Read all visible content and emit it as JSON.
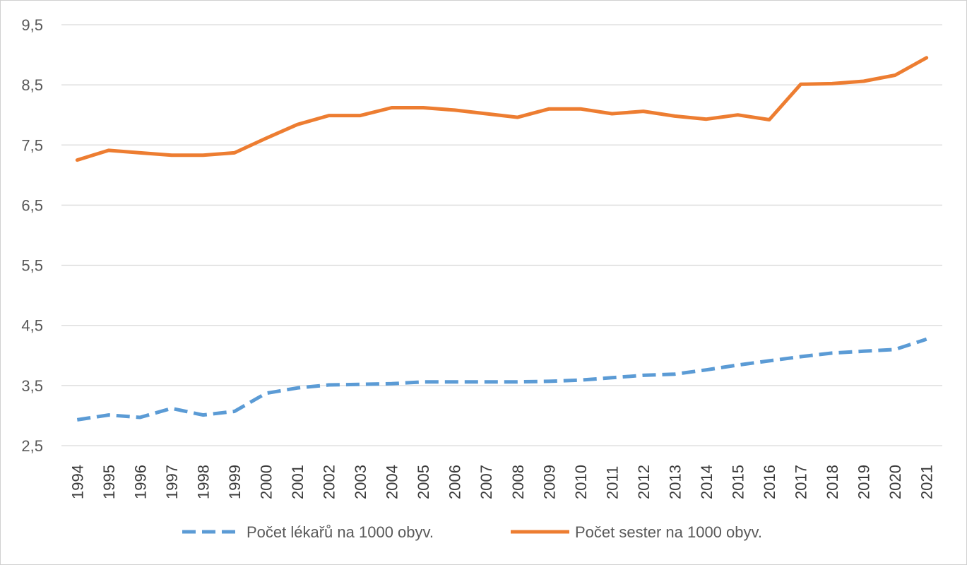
{
  "chart_data": {
    "type": "line",
    "title": "",
    "xlabel": "",
    "ylabel": "",
    "x": [
      "1994",
      "1995",
      "1996",
      "1997",
      "1998",
      "1999",
      "2000",
      "2001",
      "2002",
      "2003",
      "2004",
      "2005",
      "2006",
      "2007",
      "2008",
      "2009",
      "2010",
      "2011",
      "2012",
      "2013",
      "2014",
      "2015",
      "2016",
      "2017",
      "2018",
      "2019",
      "2020",
      "2021"
    ],
    "ylim": [
      2.5,
      9.5
    ],
    "yticks": [
      "2,5",
      "3,5",
      "4,5",
      "5,5",
      "6,5",
      "7,5",
      "8,5",
      "9,5"
    ],
    "grid": true,
    "legend_position": "bottom",
    "series": [
      {
        "name": "Počet lékařů na 1000 obyv.",
        "color": "#5b9bd5",
        "style": "dashed",
        "values": [
          2.93,
          3.01,
          2.97,
          3.12,
          3.01,
          3.07,
          3.37,
          3.46,
          3.51,
          3.52,
          3.53,
          3.56,
          3.56,
          3.56,
          3.56,
          3.57,
          3.59,
          3.63,
          3.67,
          3.69,
          3.76,
          3.84,
          3.91,
          3.98,
          4.04,
          4.07,
          4.1,
          4.27
        ]
      },
      {
        "name": "Počet sester na 1000 obyv.",
        "color": "#ed7d31",
        "style": "solid",
        "values": [
          7.25,
          7.41,
          7.37,
          7.33,
          7.33,
          7.37,
          7.61,
          7.84,
          7.99,
          7.99,
          8.12,
          8.12,
          8.08,
          8.02,
          7.96,
          8.1,
          8.1,
          8.02,
          8.06,
          7.98,
          7.93,
          8.0,
          7.92,
          8.51,
          8.52,
          8.56,
          8.66,
          8.95
        ]
      }
    ]
  }
}
